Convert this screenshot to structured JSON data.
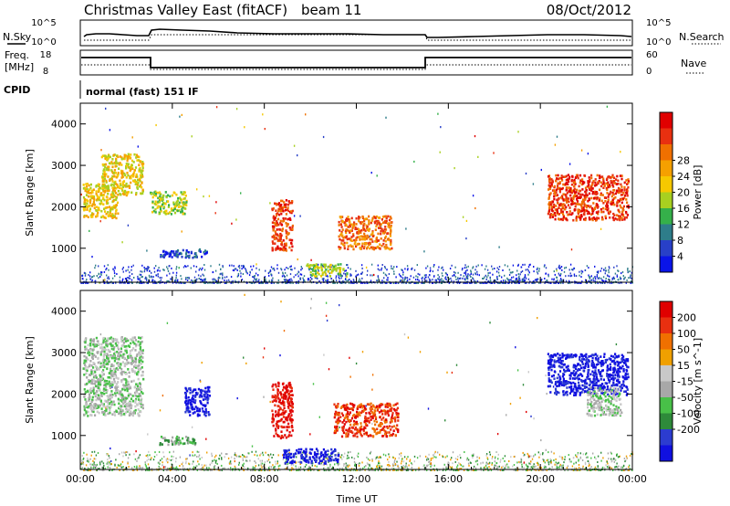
{
  "title": {
    "station": "Christmas Valley East (fitACF)",
    "beam": "beam 11",
    "date": "08/Oct/2012"
  },
  "header_panels": {
    "nsky": {
      "left_label": "N.Sky",
      "right_label": "N.Search",
      "left_ticks": [
        "10^5",
        "10^0"
      ],
      "right_ticks": [
        "10^5",
        "10^0"
      ]
    },
    "freq": {
      "left_label_line1": "Freq.",
      "left_label_line2": "[MHz]",
      "right_label": "Nave",
      "left_ticks": [
        "18",
        "8"
      ],
      "right_ticks": [
        "60",
        "0"
      ]
    },
    "cpid": {
      "label": "CPID",
      "text": "normal (fast) 151 IF"
    }
  },
  "chart_data": [
    {
      "type": "heatmap",
      "name": "power",
      "xlabel": "Time UT",
      "ylabel": "Slant Range [km]",
      "x_ticks": [
        "00:00",
        "04:00",
        "08:00",
        "12:00",
        "16:00",
        "20:00",
        "00:00"
      ],
      "y_ticks": [
        "1000",
        "2000",
        "3000",
        "4000"
      ],
      "xlim": [
        0,
        24
      ],
      "ylim": [
        180,
        4500
      ],
      "colorbar": {
        "label": "Power [dB]",
        "ticks": [
          "4",
          "8",
          "12",
          "16",
          "20",
          "24",
          "28"
        ],
        "colors": [
          "#0a14e8",
          "#2840c8",
          "#2e7d8a",
          "#35b04a",
          "#a8d020",
          "#f6c800",
          "#f5a000",
          "#f07000",
          "#e83010",
          "#e00000"
        ]
      },
      "regions": [
        {
          "t0": 0.1,
          "t1": 1.6,
          "r0": 1750,
          "r1": 2600,
          "level": 5
        },
        {
          "t0": 0.9,
          "t1": 2.7,
          "r0": 2300,
          "r1": 3300,
          "level": 5
        },
        {
          "t0": 3.0,
          "t1": 4.6,
          "r0": 1850,
          "r1": 2400,
          "level": 4
        },
        {
          "t0": 3.4,
          "t1": 5.5,
          "r0": 800,
          "r1": 1000,
          "level": 1
        },
        {
          "t0": 8.3,
          "t1": 9.2,
          "r0": 950,
          "r1": 2200,
          "level": 8
        },
        {
          "t0": 9.8,
          "t1": 11.6,
          "r0": 350,
          "r1": 650,
          "level": 4
        },
        {
          "t0": 11.2,
          "t1": 13.5,
          "r0": 1000,
          "r1": 1800,
          "level": 7
        },
        {
          "t0": 20.3,
          "t1": 23.8,
          "r0": 1700,
          "r1": 2800,
          "level": 8
        }
      ]
    },
    {
      "type": "heatmap",
      "name": "velocity",
      "xlabel": "Time UT",
      "ylabel": "Slant Range [km]",
      "x_ticks": [
        "00:00",
        "04:00",
        "08:00",
        "12:00",
        "16:00",
        "20:00",
        "00:00"
      ],
      "y_ticks": [
        "1000",
        "2000",
        "3000",
        "4000"
      ],
      "xlim": [
        0,
        24
      ],
      "ylim": [
        180,
        4500
      ],
      "colorbar": {
        "label": "Velocity [m s^-1]",
        "ticks": [
          "200",
          "100",
          "50",
          "15",
          "-15",
          "-50",
          "-100",
          "-200"
        ],
        "colors": [
          "#1010e0",
          "#2c3cd0",
          "#2e8a3a",
          "#48c048",
          "#a8a8a8",
          "#c8c8c8",
          "#f0a000",
          "#f07000",
          "#e83010",
          "#e00000"
        ]
      },
      "regions": [
        {
          "t0": 0.1,
          "t1": 2.7,
          "r0": 1500,
          "r1": 3400,
          "level": 4
        },
        {
          "t0": 4.5,
          "t1": 5.6,
          "r0": 1500,
          "r1": 2200,
          "level": 0
        },
        {
          "t0": 3.4,
          "t1": 5.0,
          "r0": 800,
          "r1": 1000,
          "level": 3
        },
        {
          "t0": 8.3,
          "t1": 9.2,
          "r0": 950,
          "r1": 2300,
          "level": 9
        },
        {
          "t0": 8.8,
          "t1": 11.2,
          "r0": 350,
          "r1": 700,
          "level": 0
        },
        {
          "t0": 11.0,
          "t1": 13.8,
          "r0": 1000,
          "r1": 1800,
          "level": 8
        },
        {
          "t0": 20.3,
          "t1": 23.8,
          "r0": 2000,
          "r1": 3000,
          "level": 0
        },
        {
          "t0": 22.0,
          "t1": 23.5,
          "r0": 1500,
          "r1": 2200,
          "level": 4
        }
      ]
    }
  ]
}
